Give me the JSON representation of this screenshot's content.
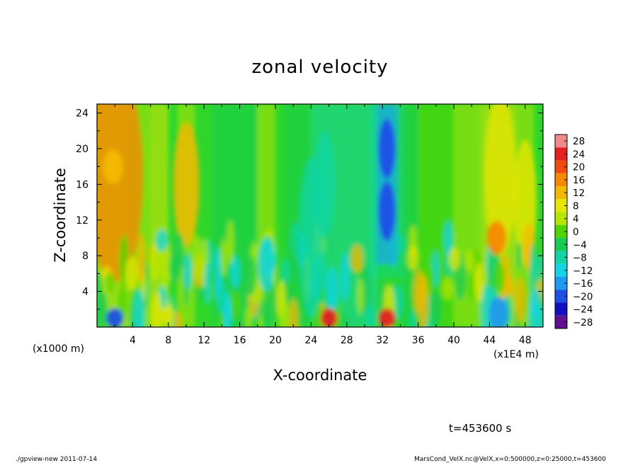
{
  "chart_data": {
    "type": "heatmap",
    "title": "zonal velocity",
    "xlabel": "X-coordinate",
    "ylabel": "Z-coordinate",
    "x_unit_label": "(x1E4 m)",
    "y_unit_label": "(x1000 m)",
    "xlim": [
      0,
      50
    ],
    "ylim": [
      0,
      25
    ],
    "x_ticks": [
      "4",
      "8",
      "12",
      "16",
      "20",
      "24",
      "28",
      "32",
      "36",
      "40",
      "44",
      "48"
    ],
    "y_ticks": [
      "4",
      "8",
      "12",
      "16",
      "20",
      "24"
    ],
    "colorbar": {
      "levels": [
        "28",
        "24",
        "20",
        "16",
        "12",
        "8",
        "4",
        "0",
        "−4",
        "−8",
        "−12",
        "−16",
        "−20",
        "−24",
        "−28"
      ],
      "colors": [
        "#f08a8a",
        "#e52020",
        "#f04a10",
        "#f58a00",
        "#f5b800",
        "#e6e600",
        "#b4e600",
        "#4fd600",
        "#17cc50",
        "#10d6a6",
        "#10d6e6",
        "#1a9af0",
        "#1f50e6",
        "#1010c0",
        "#601090"
      ]
    },
    "features": [
      {
        "x": 32.5,
        "z": 20,
        "u": -20
      },
      {
        "x": 32.5,
        "z": 13,
        "u": -22
      },
      {
        "x": 1.8,
        "z": 18,
        "u": 12
      },
      {
        "x": 44.8,
        "z": 10,
        "u": 16
      },
      {
        "x": 32.5,
        "z": 1,
        "u": 24
      },
      {
        "x": 26,
        "z": 1,
        "u": 22
      },
      {
        "x": 2,
        "z": 1,
        "u": -22
      },
      {
        "x": 45,
        "z": 1.5,
        "u": -18
      }
    ],
    "time_label": "t=453600 s"
  },
  "footer": {
    "left": "./gpview-new   2011-07-14",
    "right": "MarsCond_VelX.nc@VelX,x=0:500000,z=0:25000,t=453600"
  }
}
